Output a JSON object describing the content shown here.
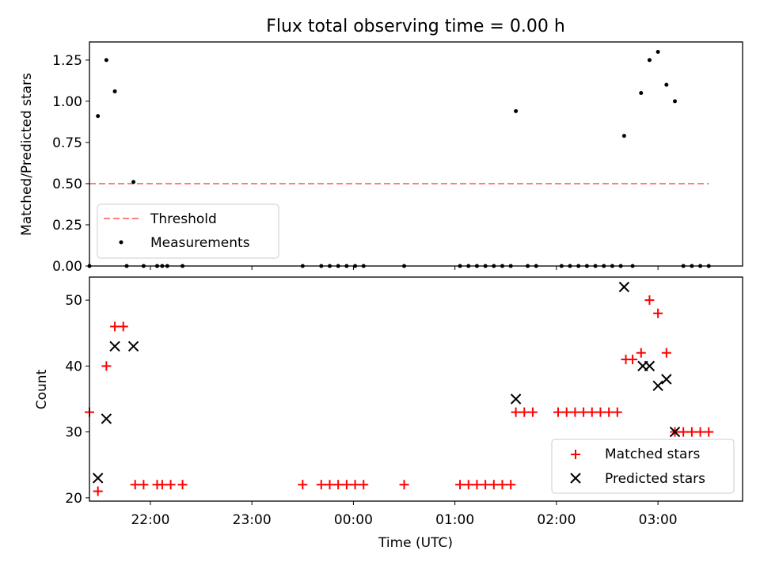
{
  "chart_data": [
    {
      "type": "scatter",
      "title": "Flux total observing time = 0.00 h",
      "ylabel": "Matched/Predicted stars",
      "xlabel": "",
      "xlim": [
        "21:24",
        "03:50"
      ],
      "ylim": [
        0,
        1.36
      ],
      "yticks": [
        "0.00",
        "0.25",
        "0.50",
        "0.75",
        "1.00",
        "1.25"
      ],
      "grid": false,
      "legend_position": "lower-left",
      "threshold": {
        "name": "Threshold",
        "value": 0.5,
        "x_start": "21:24",
        "x_end": "03:30",
        "color": "#ff7f7f"
      },
      "series": [
        {
          "name": "Measurements",
          "color": "#000000",
          "points": [
            [
              "21:24",
              0
            ],
            [
              "21:29",
              0.91
            ],
            [
              "21:34",
              1.25
            ],
            [
              "21:39",
              1.06
            ],
            [
              "21:46",
              0
            ],
            [
              "21:50",
              0.51
            ],
            [
              "21:56",
              0
            ],
            [
              "22:04",
              0
            ],
            [
              "22:07",
              0
            ],
            [
              "22:10",
              0
            ],
            [
              "22:19",
              0
            ],
            [
              "23:30",
              0
            ],
            [
              "23:41",
              0
            ],
            [
              "23:46",
              0
            ],
            [
              "23:51",
              0
            ],
            [
              "23:56",
              0
            ],
            [
              "00:01",
              0
            ],
            [
              "00:06",
              0
            ],
            [
              "00:30",
              0
            ],
            [
              "01:03",
              0
            ],
            [
              "01:08",
              0
            ],
            [
              "01:13",
              0
            ],
            [
              "01:18",
              0
            ],
            [
              "01:23",
              0
            ],
            [
              "01:28",
              0
            ],
            [
              "01:33",
              0
            ],
            [
              "01:36",
              0.94
            ],
            [
              "01:43",
              0
            ],
            [
              "01:48",
              0
            ],
            [
              "02:03",
              0
            ],
            [
              "02:08",
              0
            ],
            [
              "02:13",
              0
            ],
            [
              "02:18",
              0
            ],
            [
              "02:23",
              0
            ],
            [
              "02:28",
              0
            ],
            [
              "02:33",
              0
            ],
            [
              "02:38",
              0
            ],
            [
              "02:40",
              0.79
            ],
            [
              "02:45",
              0
            ],
            [
              "02:50",
              1.05
            ],
            [
              "02:55",
              1.25
            ],
            [
              "03:00",
              1.3
            ],
            [
              "03:05",
              1.1
            ],
            [
              "03:10",
              1.0
            ],
            [
              "03:15",
              0
            ],
            [
              "03:20",
              0
            ],
            [
              "03:25",
              0
            ],
            [
              "03:30",
              0
            ]
          ]
        }
      ]
    },
    {
      "type": "scatter",
      "title": "",
      "xlabel": "Time (UTC)",
      "ylabel": "Count",
      "xlim": [
        "21:24",
        "03:50"
      ],
      "ylim": [
        19.5,
        53.5
      ],
      "yticks": [
        "20",
        "30",
        "40",
        "50"
      ],
      "xticks": [
        "22:00",
        "23:00",
        "00:00",
        "01:00",
        "02:00",
        "03:00"
      ],
      "grid": false,
      "legend_position": "lower-right",
      "series": [
        {
          "name": "Matched stars",
          "marker": "+",
          "color": "#ff0000",
          "points": [
            [
              "21:24",
              33
            ],
            [
              "21:29",
              21
            ],
            [
              "21:34",
              40
            ],
            [
              "21:39",
              46
            ],
            [
              "21:44",
              46
            ],
            [
              "21:51",
              22
            ],
            [
              "21:56",
              22
            ],
            [
              "22:04",
              22
            ],
            [
              "22:07",
              22
            ],
            [
              "22:12",
              22
            ],
            [
              "22:19",
              22
            ],
            [
              "23:30",
              22
            ],
            [
              "23:41",
              22
            ],
            [
              "23:46",
              22
            ],
            [
              "23:51",
              22
            ],
            [
              "23:56",
              22
            ],
            [
              "00:01",
              22
            ],
            [
              "00:06",
              22
            ],
            [
              "00:30",
              22
            ],
            [
              "01:03",
              22
            ],
            [
              "01:08",
              22
            ],
            [
              "01:13",
              22
            ],
            [
              "01:18",
              22
            ],
            [
              "01:23",
              22
            ],
            [
              "01:28",
              22
            ],
            [
              "01:33",
              22
            ],
            [
              "01:36",
              33
            ],
            [
              "01:41",
              33
            ],
            [
              "01:46",
              33
            ],
            [
              "02:01",
              33
            ],
            [
              "02:06",
              33
            ],
            [
              "02:11",
              33
            ],
            [
              "02:16",
              33
            ],
            [
              "02:21",
              33
            ],
            [
              "02:26",
              33
            ],
            [
              "02:31",
              33
            ],
            [
              "02:36",
              33
            ],
            [
              "02:41",
              41
            ],
            [
              "02:45",
              41
            ],
            [
              "02:50",
              42
            ],
            [
              "02:55",
              50
            ],
            [
              "03:00",
              48
            ],
            [
              "03:05",
              42
            ],
            [
              "03:10",
              30
            ],
            [
              "03:15",
              30
            ],
            [
              "03:20",
              30
            ],
            [
              "03:25",
              30
            ],
            [
              "03:30",
              30
            ]
          ]
        },
        {
          "name": "Predicted stars",
          "marker": "x",
          "color": "#000000",
          "points": [
            [
              "21:29",
              23
            ],
            [
              "21:34",
              32
            ],
            [
              "21:39",
              43
            ],
            [
              "21:50",
              43
            ],
            [
              "01:36",
              35
            ],
            [
              "02:40",
              52
            ],
            [
              "02:51",
              40
            ],
            [
              "02:55",
              40
            ],
            [
              "03:00",
              37
            ],
            [
              "03:05",
              38
            ],
            [
              "03:10",
              30
            ]
          ]
        }
      ]
    }
  ]
}
